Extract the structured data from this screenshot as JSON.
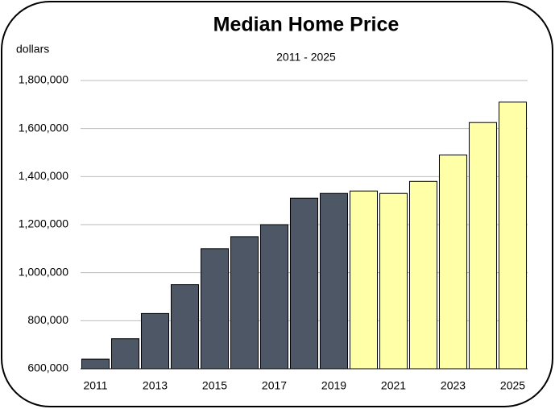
{
  "chart_data": {
    "type": "bar",
    "title": "Median Home Price",
    "subtitle": "2011 - 2025",
    "y_label": "dollars",
    "categories": [
      "2011",
      null,
      "2013",
      null,
      "2015",
      null,
      "2017",
      null,
      "2019",
      null,
      "2021",
      null,
      "2023",
      null,
      "2025"
    ],
    "values": [
      640000,
      725000,
      830000,
      950000,
      1100000,
      1150000,
      1200000,
      1310000,
      1330000,
      1340000,
      1330000,
      1380000,
      1490000,
      1625000,
      1710000
    ],
    "colors": [
      "#4d5766",
      "#4d5766",
      "#4d5766",
      "#4d5766",
      "#4d5766",
      "#4d5766",
      "#4d5766",
      "#4d5766",
      "#4d5766",
      "#ffffa8",
      "#ffffa8",
      "#ffffa8",
      "#ffffa8",
      "#ffffa8",
      "#ffffa8"
    ],
    "ylim": [
      600000,
      1800000
    ],
    "yticks": [
      {
        "value": 600000,
        "label": "600,000"
      },
      {
        "value": 800000,
        "label": "800,000"
      },
      {
        "value": 1000000,
        "label": "1,000,000"
      },
      {
        "value": 1200000,
        "label": "1,200,000"
      },
      {
        "value": 1400000,
        "label": "1,400,000"
      },
      {
        "value": 1600000,
        "label": "1,600,000"
      },
      {
        "value": 1800000,
        "label": "1,800,000"
      }
    ],
    "grid": true
  }
}
